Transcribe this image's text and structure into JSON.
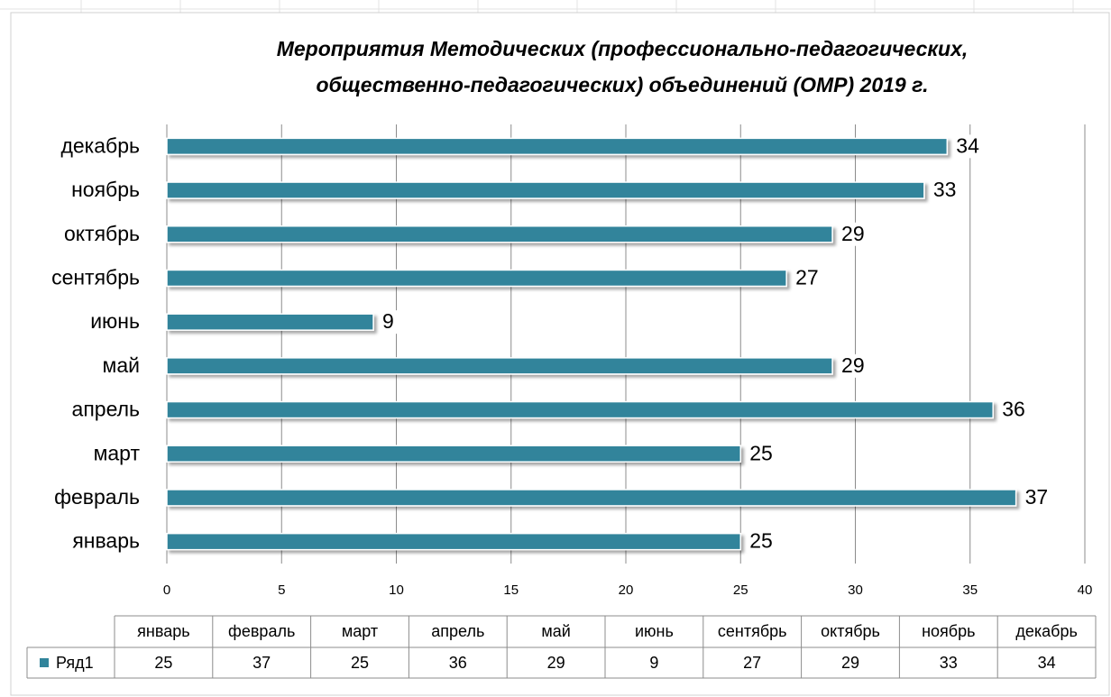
{
  "chart_data": {
    "type": "bar",
    "orientation": "horizontal",
    "title": [
      "Мероприятия Методических (профессионально-педагогических,",
      "общественно-педагогических) объединений (ОМР) 2019 г."
    ],
    "categories": [
      "январь",
      "февраль",
      "март",
      "апрель",
      "май",
      "июнь",
      "сентябрь",
      "октябрь",
      "ноябрь",
      "декабрь"
    ],
    "series": [
      {
        "name": "Ряд1",
        "color": "#31849b",
        "values": [
          25,
          37,
          25,
          36,
          29,
          9,
          27,
          29,
          33,
          34
        ]
      }
    ],
    "xlim": [
      0,
      40
    ],
    "xticks": [
      0,
      5,
      10,
      15,
      20,
      25,
      30,
      35,
      40
    ],
    "grid": true,
    "data_table": true
  }
}
